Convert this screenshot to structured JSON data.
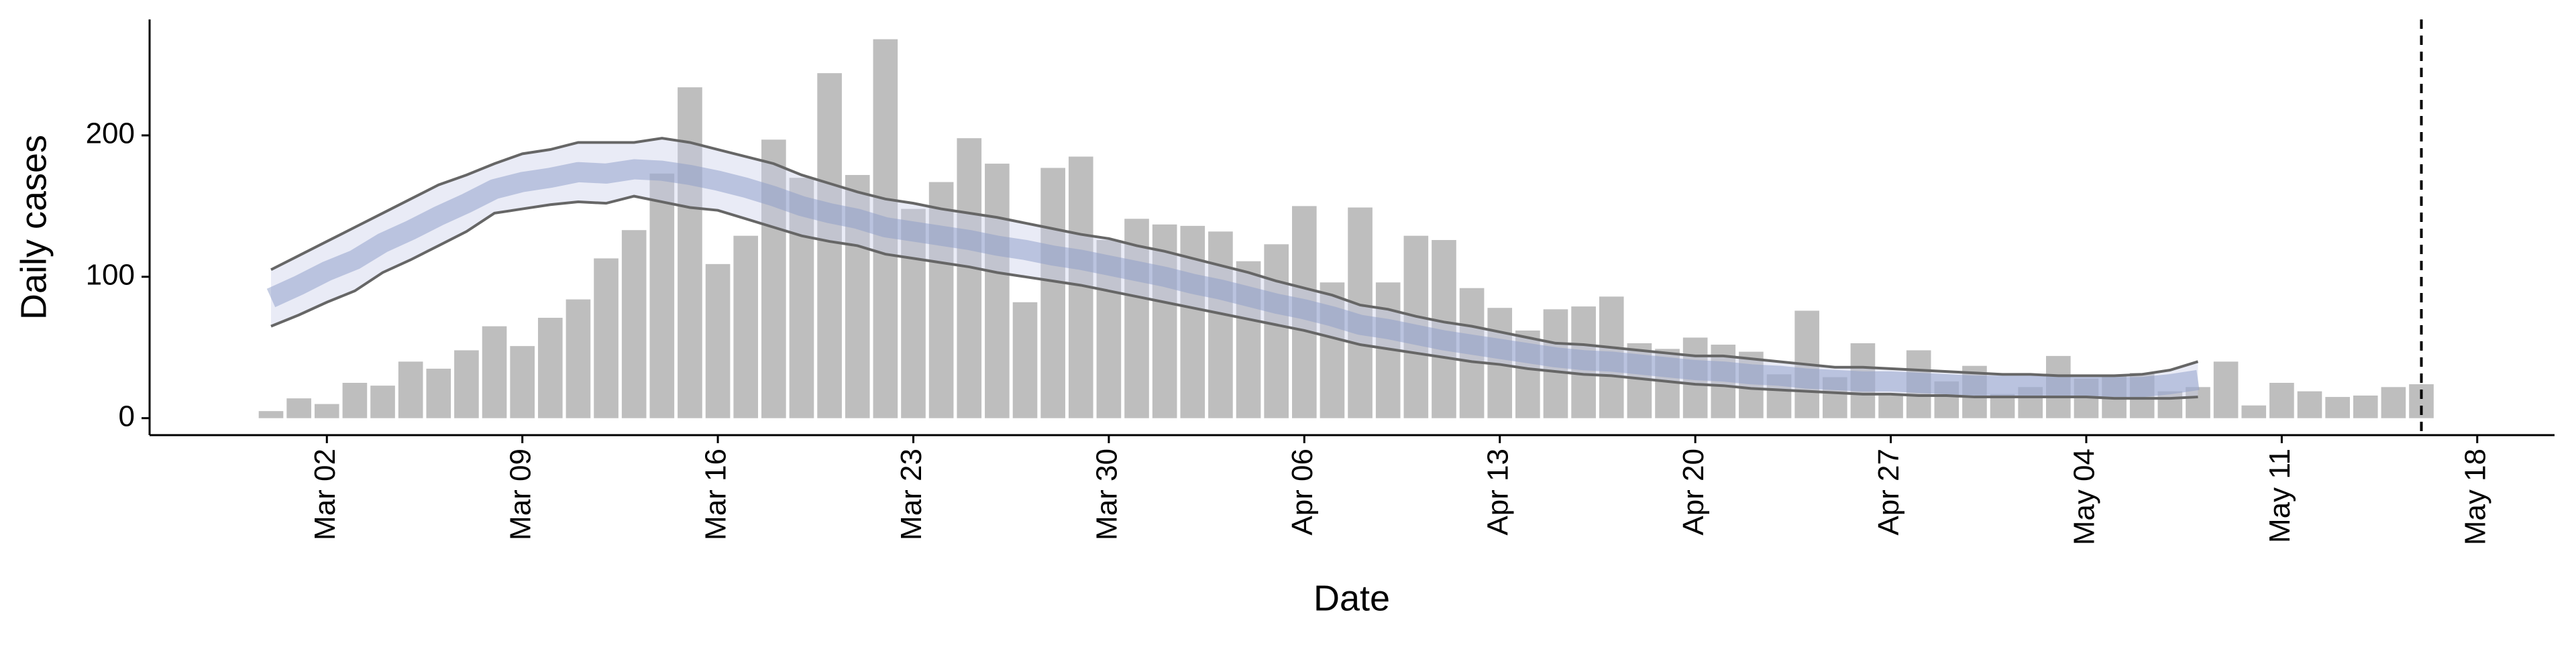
{
  "chart_data": {
    "type": "bar",
    "x_label": "Date",
    "y_label": "Daily cases",
    "categories": [
      null,
      null,
      "Mar 02",
      null,
      null,
      null,
      null,
      null,
      null,
      "Mar 09",
      null,
      null,
      null,
      null,
      null,
      null,
      "Mar 16",
      null,
      null,
      null,
      null,
      null,
      null,
      "Mar 23",
      null,
      null,
      null,
      null,
      null,
      null,
      "Mar 30",
      null,
      null,
      null,
      null,
      null,
      null,
      "Apr 06",
      null,
      null,
      null,
      null,
      null,
      null,
      "Apr 13",
      null,
      null,
      null,
      null,
      null,
      null,
      "Apr 20",
      null,
      null,
      null,
      null,
      null,
      null,
      "Apr 27",
      null,
      null,
      null,
      null,
      null,
      null,
      "May 04",
      null,
      null,
      null,
      null,
      null,
      null,
      "May 11",
      null,
      null,
      null,
      null,
      null,
      null,
      "May 18"
    ],
    "values": [
      5,
      14,
      10,
      25,
      23,
      40,
      35,
      48,
      65,
      51,
      71,
      84,
      113,
      133,
      173,
      234,
      109,
      129,
      197,
      170,
      244,
      172,
      268,
      148,
      167,
      198,
      180,
      82,
      177,
      185,
      126,
      141,
      137,
      136,
      132,
      111,
      123,
      150,
      96,
      149,
      96,
      129,
      126,
      92,
      78,
      62,
      77,
      79,
      86,
      53,
      49,
      57,
      52,
      47,
      31,
      76,
      29,
      53,
      16,
      48,
      26,
      37,
      17,
      22,
      44,
      28,
      30,
      32,
      19,
      22,
      40,
      9,
      25,
      19,
      15,
      16,
      22,
      24,
      null,
      null
    ],
    "color": "#bebebe",
    "bounds": {
      "upper": [
        105,
        115,
        125,
        135,
        145,
        155,
        165,
        172,
        180,
        187,
        190,
        195,
        195,
        195,
        198,
        195,
        190,
        185,
        180,
        172,
        166,
        160,
        155,
        152,
        148,
        145,
        142,
        138,
        134,
        130,
        127,
        122,
        118,
        113,
        108,
        103,
        97,
        92,
        87,
        80,
        77,
        72,
        68,
        65,
        61,
        57,
        53,
        52,
        50,
        48,
        46,
        44,
        44,
        42,
        40,
        38,
        36,
        36,
        35,
        34,
        33,
        32,
        31,
        31,
        30,
        30,
        30,
        31,
        34,
        40,
        null,
        null,
        null,
        null,
        null,
        null,
        null,
        null,
        null,
        null
      ],
      "lower": [
        65,
        73,
        82,
        90,
        103,
        112,
        122,
        132,
        145,
        148,
        151,
        153,
        152,
        157,
        153,
        149,
        147,
        141,
        135,
        129,
        125,
        122,
        116,
        113,
        110,
        107,
        103,
        100,
        97,
        94,
        90,
        86,
        82,
        78,
        74,
        70,
        66,
        62,
        57,
        52,
        49,
        46,
        43,
        40,
        38,
        35,
        33,
        31,
        30,
        28,
        26,
        24,
        23,
        21,
        20,
        19,
        18,
        17,
        17,
        16,
        16,
        15,
        15,
        15,
        15,
        15,
        14,
        14,
        14,
        15,
        null,
        null,
        null,
        null,
        null,
        null,
        null,
        null,
        null,
        null
      ],
      "color": "#666666",
      "fill": "rgba(200,205,232,0.4)"
    },
    "median": {
      "values": [
        85,
        94,
        104,
        112,
        124,
        133,
        143,
        152,
        162,
        167,
        170,
        174,
        173,
        176,
        175,
        172,
        168,
        163,
        157,
        150,
        145,
        141,
        135,
        132,
        129,
        126,
        122,
        119,
        115,
        112,
        108,
        104,
        100,
        95,
        91,
        86,
        81,
        77,
        72,
        66,
        63,
        59,
        55,
        52,
        49,
        46,
        43,
        41,
        40,
        38,
        36,
        34,
        33,
        31,
        30,
        28,
        27,
        26,
        26,
        25,
        24,
        23,
        23,
        23,
        22,
        22,
        22,
        22,
        24,
        27,
        null,
        null,
        null,
        null,
        null,
        null,
        null,
        null,
        null,
        null
      ],
      "color": "rgba(140,155,200,0.5)"
    },
    "vline_index": 77,
    "ylim": [
      -12,
      282
    ],
    "yticks": [
      0,
      100,
      200
    ]
  }
}
